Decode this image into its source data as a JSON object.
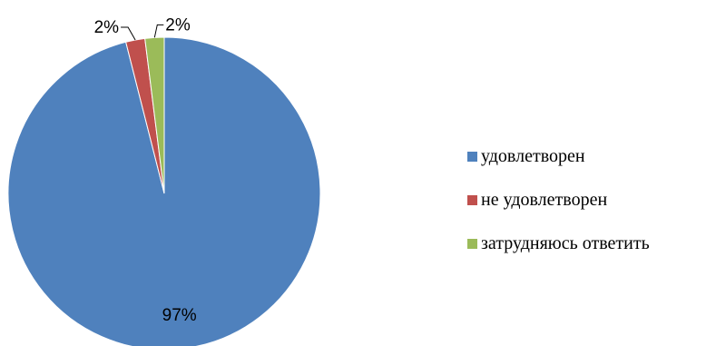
{
  "chart_data": {
    "type": "pie",
    "categories": [
      "удовлетворен",
      "не удовлетворен",
      "затрудняюсь ответить"
    ],
    "values": [
      97,
      2,
      2
    ],
    "data_labels": [
      "97%",
      "2%",
      "2%"
    ],
    "colors": [
      "#4F81BD",
      "#C0504D",
      "#9BBB59"
    ],
    "legend_position": "right",
    "start_angle": "12 o'clock, clockwise"
  }
}
